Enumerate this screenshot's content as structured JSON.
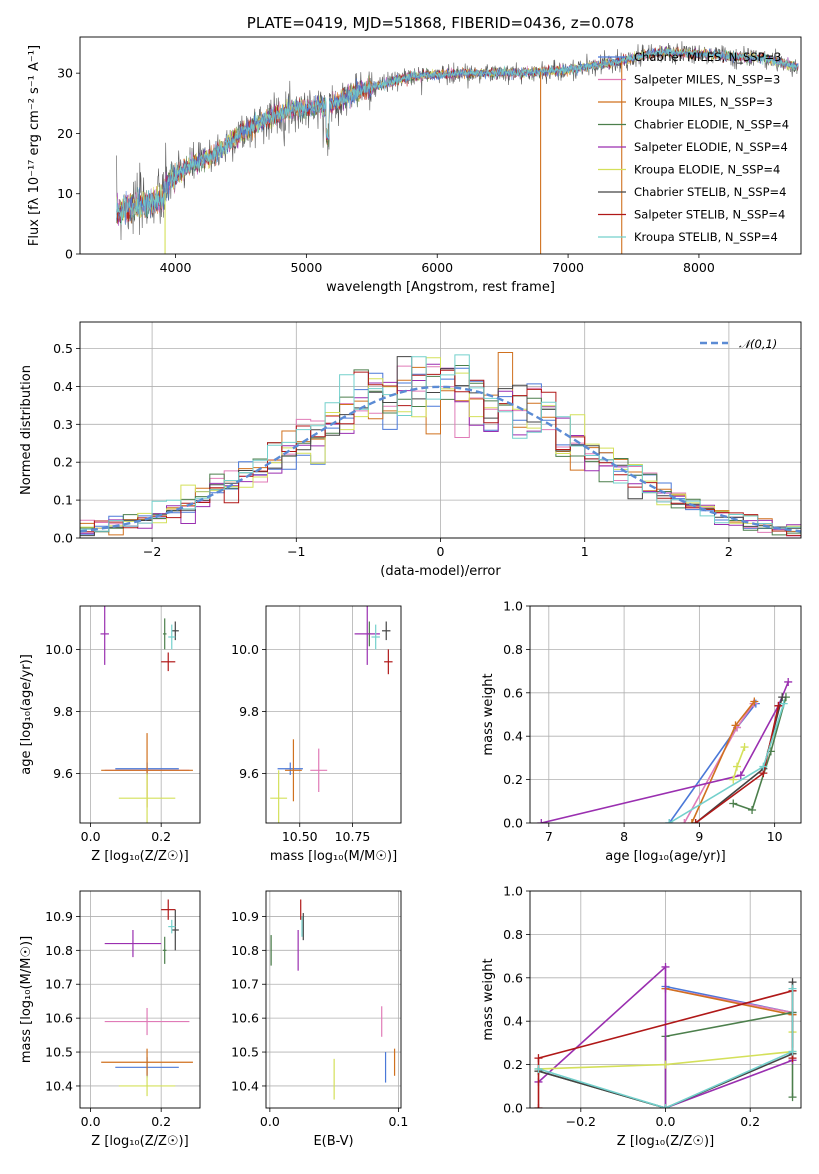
{
  "figure_title": "PLATE=0419, MJD=51868, FIBERID=0436, z=0.078",
  "colors": {
    "Chabrier MILES": "#4a78d8",
    "Salpeter MILES": "#e07bb7",
    "Kroupa MILES": "#d0711f",
    "Chabrier ELODIE": "#4c7f4c",
    "Salpeter ELODIE": "#9a2fb0",
    "Kroupa ELODIE": "#d4e05a",
    "Chabrier STELIB": "#444444",
    "Salpeter STELIB": "#b01818",
    "Kroupa STELIB": "#73d0cc",
    "gaussian": "#5b8bd4",
    "grid": "#b0b0b0"
  },
  "chart_data": [
    {
      "type": "line",
      "id": "spectrum",
      "title": "PLATE=0419, MJD=51868, FIBERID=0436, z=0.078",
      "xlabel": "wavelength [Angstrom, rest frame]",
      "ylabel": "Flux [fλ 10⁻¹⁷ erg cm⁻² s⁻¹ A⁻¹]",
      "xlim": [
        3270,
        8780
      ],
      "ylim": [
        0,
        36
      ],
      "xticks": [
        "4000",
        "5000",
        "6000",
        "7000",
        "8000"
      ],
      "yticks": [
        "0",
        "10",
        "20",
        "30"
      ],
      "grid": false,
      "legend_position": "top-right",
      "legend": [
        "Chabrier MILES, N_SSP=3",
        "Salpeter MILES, N_SSP=3",
        "Kroupa MILES, N_SSP=3",
        "Chabrier ELODIE, N_SSP=4",
        "Salpeter ELODIE, N_SSP=4",
        "Kroupa ELODIE, N_SSP=4",
        "Chabrier STELIB, N_SSP=4",
        "Salpeter STELIB, N_SSP=4",
        "Kroupa STELIB, N_SSP=4"
      ],
      "continuum": [
        [
          3550,
          7
        ],
        [
          3700,
          8
        ],
        [
          3900,
          9
        ],
        [
          3950,
          12
        ],
        [
          4100,
          14.5
        ],
        [
          4300,
          16.5
        ],
        [
          4500,
          20
        ],
        [
          4700,
          22.5
        ],
        [
          4900,
          24
        ],
        [
          5150,
          24.5
        ],
        [
          5400,
          27
        ],
        [
          5800,
          29.5
        ],
        [
          6200,
          30
        ],
        [
          6600,
          30
        ],
        [
          7000,
          30.5
        ],
        [
          7400,
          32
        ],
        [
          7700,
          33.5
        ],
        [
          8100,
          33
        ],
        [
          8500,
          32.5
        ],
        [
          8760,
          31
        ]
      ],
      "dips": [
        {
          "x": 3920,
          "y": 0
        },
        {
          "x": 6790,
          "y": 0
        },
        {
          "x": 7410,
          "y": 0
        }
      ]
    },
    {
      "type": "line",
      "id": "residual_hist",
      "xlabel": "(data-model)/error",
      "ylabel": "Normed distribution",
      "xlim": [
        -2.5,
        2.5
      ],
      "ylim": [
        0,
        0.57
      ],
      "xticks": [
        "−2",
        "−1",
        "0",
        "1",
        "2"
      ],
      "yticks": [
        "0.0",
        "0.1",
        "0.2",
        "0.3",
        "0.4",
        "0.5"
      ],
      "grid": true,
      "legend_position": "top-right",
      "legend": [
        "𝒩(0,1)"
      ],
      "bin_width": 0.1,
      "bin_start": -2.5,
      "gaussian": {
        "mean": 0,
        "sigma": 1
      }
    },
    {
      "type": "scatter",
      "id": "age_vs_Z",
      "xlabel": "Z [log₁₀(Z/Z☉)]",
      "ylabel": "age  [log₁₀(age/yr)]",
      "xlim": [
        -0.03,
        0.31
      ],
      "ylim": [
        9.44,
        10.14
      ],
      "xticks": [
        "0.0",
        "0.2"
      ],
      "yticks": [
        "9.6",
        "9.8",
        "10.0"
      ],
      "grid": true,
      "points": [
        {
          "m": "Chabrier MILES",
          "x": 0.16,
          "y": 9.615,
          "xe": 0.09,
          "ye": 0.02
        },
        {
          "m": "Salpeter MILES",
          "x": 0.16,
          "y": 9.61,
          "xe": 0.12,
          "ye": 0.01
        },
        {
          "m": "Kroupa MILES",
          "x": 0.16,
          "y": 9.61,
          "xe": 0.13,
          "ye": 0.12
        },
        {
          "m": "Chabrier ELODIE",
          "x": 0.21,
          "y": 10.05,
          "xe": 0.005,
          "ye": 0.05
        },
        {
          "m": "Salpeter ELODIE",
          "x": 0.04,
          "y": 10.05,
          "xe": 0.012,
          "ye": 0.1
        },
        {
          "m": "Kroupa ELODIE",
          "x": 0.16,
          "y": 9.52,
          "xe": 0.08,
          "ye": 0.08
        },
        {
          "m": "Chabrier STELIB",
          "x": 0.24,
          "y": 10.06,
          "xe": 0.01,
          "ye": 0.03
        },
        {
          "m": "Salpeter STELIB",
          "x": 0.22,
          "y": 9.96,
          "xe": 0.02,
          "ye": 0.03
        },
        {
          "m": "Kroupa STELIB",
          "x": 0.23,
          "y": 10.04,
          "xe": 0.01,
          "ye": 0.04
        }
      ]
    },
    {
      "type": "scatter",
      "id": "age_vs_mass",
      "xlabel": "mass [log₁₀(M/M☉)]",
      "ylabel": "",
      "xlim": [
        10.34,
        10.98
      ],
      "ylim": [
        9.44,
        10.14
      ],
      "xticks": [
        "10.50",
        "10.75"
      ],
      "yticks": [
        "9.6",
        "9.8",
        "10.0"
      ],
      "grid": true,
      "points": [
        {
          "m": "Chabrier MILES",
          "x": 10.455,
          "y": 9.615,
          "xe": 0.06,
          "ye": 0.02
        },
        {
          "m": "Salpeter MILES",
          "x": 10.59,
          "y": 9.61,
          "xe": 0.04,
          "ye": 0.07
        },
        {
          "m": "Kroupa MILES",
          "x": 10.47,
          "y": 9.61,
          "xe": 0.04,
          "ye": 0.1
        },
        {
          "m": "Chabrier ELODIE",
          "x": 10.83,
          "y": 10.05,
          "xe": 0.005,
          "ye": 0.04
        },
        {
          "m": "Salpeter ELODIE",
          "x": 10.82,
          "y": 10.05,
          "xe": 0.06,
          "ye": 0.1
        },
        {
          "m": "Kroupa ELODIE",
          "x": 10.4,
          "y": 9.52,
          "xe": 0.04,
          "ye": 0.09
        },
        {
          "m": "Chabrier STELIB",
          "x": 10.91,
          "y": 10.06,
          "xe": 0.02,
          "ye": 0.03
        },
        {
          "m": "Salpeter STELIB",
          "x": 10.92,
          "y": 9.96,
          "xe": 0.02,
          "ye": 0.04
        },
        {
          "m": "Kroupa STELIB",
          "x": 10.86,
          "y": 10.04,
          "xe": 0.02,
          "ye": 0.04
        }
      ]
    },
    {
      "type": "line",
      "id": "weight_vs_age",
      "xlabel": "age  [log₁₀(age/yr)]",
      "ylabel": "mass weight",
      "xlim": [
        6.75,
        10.35
      ],
      "ylim": [
        0,
        1
      ],
      "xticks": [
        "7",
        "8",
        "9",
        "10"
      ],
      "yticks": [
        "0.0",
        "0.2",
        "0.4",
        "0.6",
        "0.8",
        "1.0"
      ],
      "grid": true,
      "series": [
        {
          "m": "Chabrier MILES",
          "x": [
            8.6,
            9.5,
            9.75
          ],
          "y": [
            0.0,
            0.44,
            0.55
          ]
        },
        {
          "m": "Salpeter MILES",
          "x": [
            8.8,
            9.5,
            9.72
          ],
          "y": [
            0.0,
            0.44,
            0.55
          ]
        },
        {
          "m": "Kroupa MILES",
          "x": [
            8.9,
            9.48,
            9.73
          ],
          "y": [
            0.0,
            0.45,
            0.56
          ]
        },
        {
          "m": "Chabrier ELODIE",
          "x": [
            9.45,
            9.7,
            9.95,
            10.15
          ],
          "y": [
            0.09,
            0.06,
            0.33,
            0.58
          ]
        },
        {
          "m": "Salpeter ELODIE",
          "x": [
            6.9,
            9.55,
            10.05,
            10.18
          ],
          "y": [
            0.0,
            0.22,
            0.54,
            0.65
          ]
        },
        {
          "m": "Kroupa ELODIE",
          "x": [
            9.45,
            9.5,
            9.6
          ],
          "y": [
            0.2,
            0.26,
            0.35
          ]
        },
        {
          "m": "Chabrier STELIB",
          "x": [
            8.95,
            9.85,
            10.1
          ],
          "y": [
            0.0,
            0.25,
            0.58
          ]
        },
        {
          "m": "Salpeter STELIB",
          "x": [
            8.95,
            9.85,
            10.05
          ],
          "y": [
            0.0,
            0.23,
            0.54
          ]
        },
        {
          "m": "Kroupa STELIB",
          "x": [
            8.6,
            9.85,
            10.12
          ],
          "y": [
            0.0,
            0.26,
            0.55
          ]
        }
      ]
    },
    {
      "type": "scatter",
      "id": "mass_vs_Z",
      "xlabel": "Z [log₁₀(Z/Z☉)]",
      "ylabel": "mass [log₁₀(M/M☉)]",
      "xlim": [
        -0.03,
        0.31
      ],
      "ylim": [
        10.335,
        10.975
      ],
      "xticks": [
        "0.0",
        "0.2"
      ],
      "yticks": [
        "10.4",
        "10.5",
        "10.6",
        "10.7",
        "10.8",
        "10.9"
      ],
      "grid": true,
      "points": [
        {
          "m": "Chabrier MILES",
          "x": 0.16,
          "y": 10.455,
          "xe": 0.09,
          "ye": 0.03
        },
        {
          "m": "Salpeter MILES",
          "x": 0.16,
          "y": 10.59,
          "xe": 0.12,
          "ye": 0.04
        },
        {
          "m": "Kroupa MILES",
          "x": 0.16,
          "y": 10.47,
          "xe": 0.13,
          "ye": 0.04
        },
        {
          "m": "Chabrier ELODIE",
          "x": 0.21,
          "y": 10.8,
          "xe": 0.005,
          "ye": 0.04
        },
        {
          "m": "Salpeter ELODIE",
          "x": 0.12,
          "y": 10.82,
          "xe": 0.08,
          "ye": 0.04
        },
        {
          "m": "Kroupa ELODIE",
          "x": 0.16,
          "y": 10.4,
          "xe": 0.08,
          "ye": 0.03
        },
        {
          "m": "Chabrier STELIB",
          "x": 0.24,
          "y": 10.86,
          "xe": 0.01,
          "ye": 0.06
        },
        {
          "m": "Salpeter STELIB",
          "x": 0.22,
          "y": 10.92,
          "xe": 0.02,
          "ye": 0.03
        },
        {
          "m": "Kroupa STELIB",
          "x": 0.23,
          "y": 10.87,
          "xe": 0.01,
          "ye": 0.02
        }
      ]
    },
    {
      "type": "scatter",
      "id": "mass_vs_ebv",
      "xlabel": "E(B-V)",
      "ylabel": "",
      "xlim": [
        -0.003,
        0.102
      ],
      "ylim": [
        10.335,
        10.975
      ],
      "xticks": [
        "0.0",
        "0.1"
      ],
      "yticks": [
        "10.4",
        "10.5",
        "10.6",
        "10.7",
        "10.8",
        "10.9"
      ],
      "grid": true,
      "points": [
        {
          "m": "Chabrier MILES",
          "x": 0.09,
          "y": 10.455,
          "xe": 0,
          "ye": 0.045
        },
        {
          "m": "Salpeter MILES",
          "x": 0.087,
          "y": 10.59,
          "xe": 0,
          "ye": 0.045
        },
        {
          "m": "Kroupa MILES",
          "x": 0.097,
          "y": 10.47,
          "xe": 0,
          "ye": 0.04
        },
        {
          "m": "Chabrier ELODIE",
          "x": 0.001,
          "y": 10.8,
          "xe": 0,
          "ye": 0.045
        },
        {
          "m": "Salpeter ELODIE",
          "x": 0.022,
          "y": 10.8,
          "xe": 0,
          "ye": 0.06
        },
        {
          "m": "Kroupa ELODIE",
          "x": 0.05,
          "y": 10.42,
          "xe": 0,
          "ye": 0.06
        },
        {
          "m": "Chabrier STELIB",
          "x": 0.026,
          "y": 10.87,
          "xe": 0,
          "ye": 0.04
        },
        {
          "m": "Salpeter STELIB",
          "x": 0.024,
          "y": 10.92,
          "xe": 0,
          "ye": 0.03
        },
        {
          "m": "Kroupa STELIB",
          "x": 0.025,
          "y": 10.87,
          "xe": 0,
          "ye": 0.03
        }
      ]
    },
    {
      "type": "line",
      "id": "weight_vs_Z",
      "xlabel": "Z [log₁₀(Z/Z☉)]",
      "ylabel": "mass weight",
      "xlim": [
        -0.32,
        0.32
      ],
      "ylim": [
        0,
        1
      ],
      "xticks": [
        "−0.2",
        "0.0",
        "0.2"
      ],
      "yticks": [
        "0.0",
        "0.2",
        "0.4",
        "0.6",
        "0.8",
        "1.0"
      ],
      "grid": true,
      "series": [
        {
          "m": "Chabrier MILES",
          "x": [
            0.0,
            0.3
          ],
          "y": [
            0.56,
            0.44
          ]
        },
        {
          "m": "Salpeter MILES",
          "x": [
            0.0,
            0.3
          ],
          "y": [
            0.55,
            0.44
          ]
        },
        {
          "m": "Kroupa MILES",
          "x": [
            0.0,
            0.3
          ],
          "y": [
            0.55,
            0.43
          ]
        },
        {
          "m": "Chabrier ELODIE",
          "x": [
            -0.3,
            0.0,
            0.0,
            0.3,
            0.3
          ],
          "y": [
            0.17,
            0.0,
            0.33,
            0.44,
            0.05
          ]
        },
        {
          "m": "Salpeter ELODIE",
          "x": [
            -0.3,
            0.0,
            0.0,
            0.3
          ],
          "y": [
            0.12,
            0.65,
            0.0,
            0.22
          ]
        },
        {
          "m": "Kroupa ELODIE",
          "x": [
            -0.3,
            0.0,
            0.3,
            0.3
          ],
          "y": [
            0.18,
            0.2,
            0.26,
            0.35
          ]
        },
        {
          "m": "Chabrier STELIB",
          "x": [
            -0.3,
            0.0,
            0.3,
            0.3
          ],
          "y": [
            0.17,
            0.0,
            0.25,
            0.58
          ]
        },
        {
          "m": "Salpeter STELIB",
          "x": [
            -0.3,
            -0.3,
            0.3,
            0.3
          ],
          "y": [
            0.0,
            0.23,
            0.54,
            0.23
          ]
        },
        {
          "m": "Kroupa STELIB",
          "x": [
            -0.3,
            0.0,
            0.3,
            0.3
          ],
          "y": [
            0.18,
            0.0,
            0.26,
            0.55
          ]
        }
      ]
    }
  ]
}
